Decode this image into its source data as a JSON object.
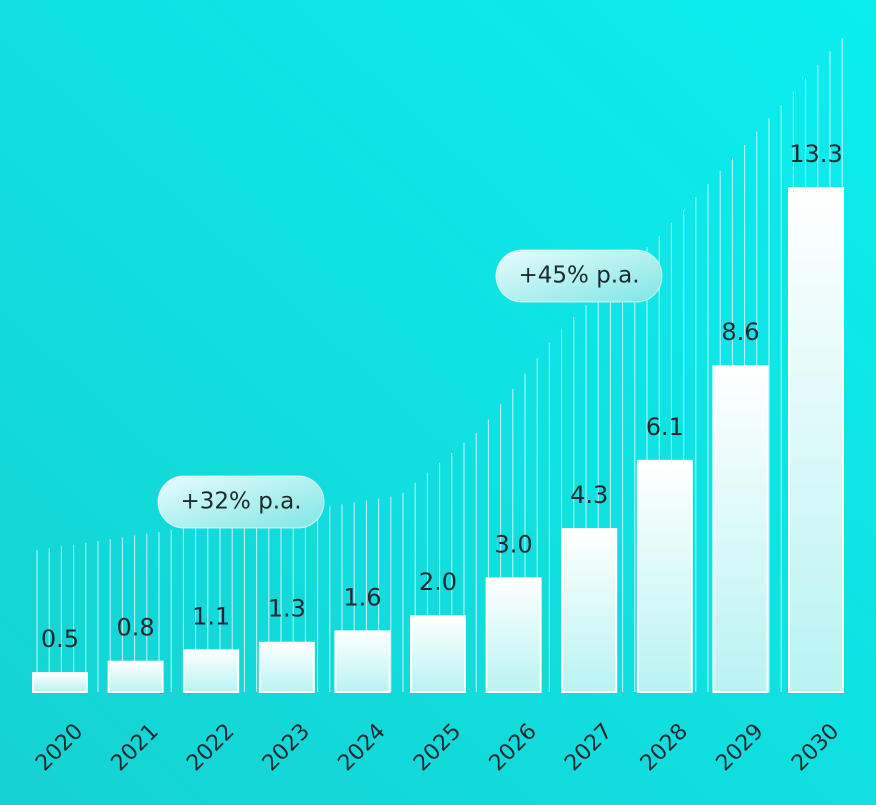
{
  "chart_data": {
    "type": "bar",
    "categories": [
      "2020",
      "2021",
      "2022",
      "2023",
      "2024",
      "2025",
      "2026",
      "2027",
      "2028",
      "2029",
      "2030"
    ],
    "values": [
      0.5,
      0.8,
      1.1,
      1.3,
      1.6,
      2.0,
      3.0,
      4.3,
      6.1,
      8.6,
      13.3
    ],
    "value_labels": [
      "0.5",
      "0.8",
      "1.1",
      "1.3",
      "1.6",
      "2.0",
      "3.0",
      "4.3",
      "6.1",
      "8.6",
      "13.3"
    ],
    "annotations": [
      "+32% p.a.",
      "+45% p.a."
    ]
  }
}
